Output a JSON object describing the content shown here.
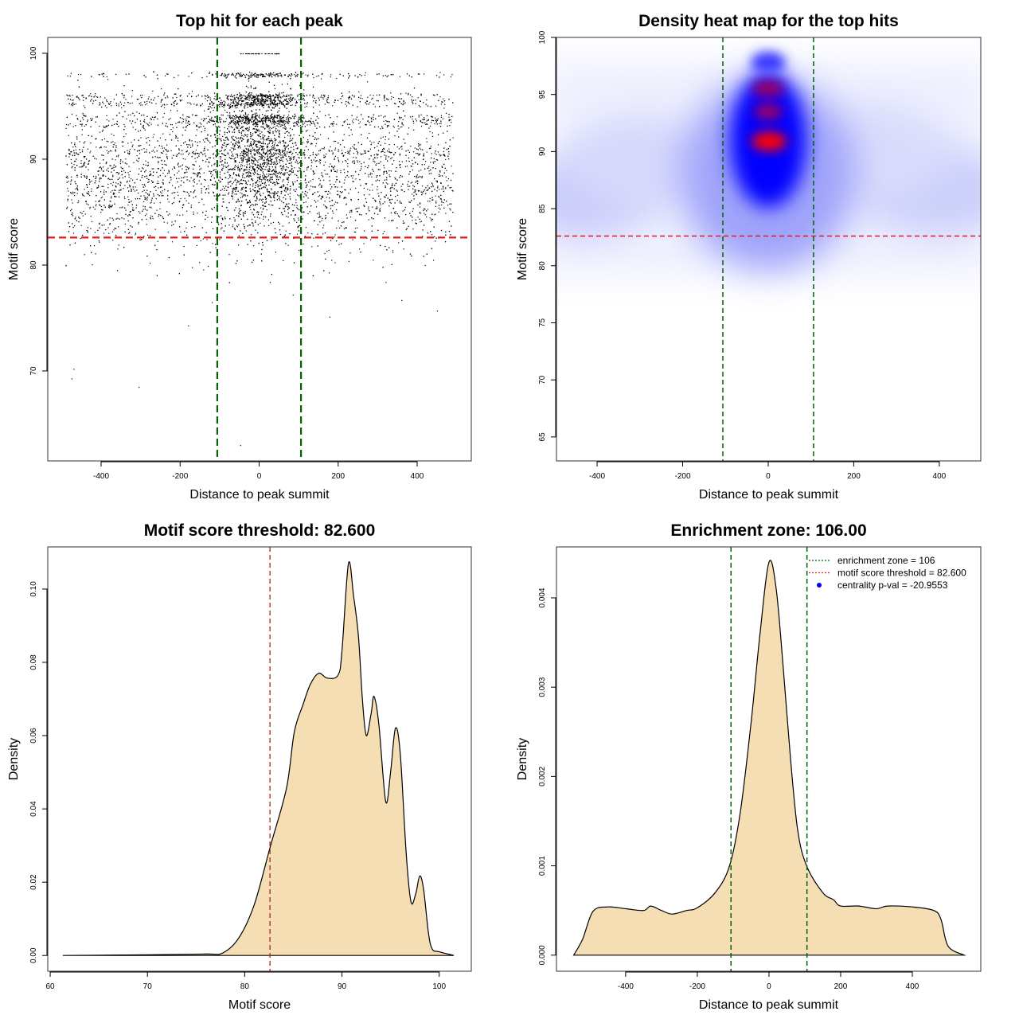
{
  "chart_data": [
    {
      "type": "scatter",
      "title": "Top hit for each peak",
      "xlabel": "Distance to peak summit",
      "ylabel": "Motif score",
      "xlim": [
        -535,
        537
      ],
      "ylim": [
        61.5,
        101.5
      ],
      "xticks": [
        -400,
        -200,
        0,
        200,
        400
      ],
      "yticks": [
        70,
        80,
        90,
        100
      ],
      "points_color": "#000000",
      "vlines": {
        "values": [
          -106,
          106
        ],
        "color": "#006400",
        "style": "dashed"
      },
      "hline": {
        "value": 82.6,
        "color": "#e41a1c",
        "style": "dashed"
      },
      "grid": false
    },
    {
      "type": "heatmap",
      "title": "Density heat map for the top hits",
      "xlabel": "Distance to peak summit",
      "ylabel": "Motif score",
      "xlim": [
        -495,
        497
      ],
      "ylim": [
        62.9,
        100
      ],
      "xticks": [
        -400,
        -200,
        0,
        200,
        400
      ],
      "yticks": [
        65,
        70,
        75,
        80,
        85,
        90,
        95,
        100
      ],
      "colors": {
        "low": "#ffffff",
        "mid": "#0000ff",
        "high": "#ff0000"
      },
      "vlines": {
        "values": [
          -106,
          106
        ],
        "color": "#006400",
        "style": "dashed"
      },
      "hline": {
        "value": 82.6,
        "color": "#e41a1c",
        "style": "dashed"
      },
      "grid": false
    },
    {
      "type": "area",
      "title": "Motif score threshold: 82.600",
      "xlabel": "Motif score",
      "ylabel": "Density",
      "xlim": [
        59.75,
        103.3
      ],
      "ylim": [
        -0.0043,
        0.1115
      ],
      "xticks": [
        60,
        70,
        80,
        90,
        100
      ],
      "yticks": [
        "0.00",
        "0.02",
        "0.04",
        "0.06",
        "0.08",
        "0.10"
      ],
      "fill": "#f5deb3",
      "x": [
        61.3,
        70,
        76,
        77.75,
        79.4,
        81,
        82.66,
        84.3,
        85.1,
        86.0,
        86.75,
        87.6,
        88.5,
        89.6,
        90.0,
        90.67,
        91.2,
        91.7,
        92.1,
        92.5,
        93.0,
        93.3,
        93.8,
        94.5,
        95.0,
        95.5,
        96.0,
        96.6,
        97.1,
        97.6,
        98.0,
        98.4,
        98.9,
        99.3,
        100,
        101.5
      ],
      "y": [
        0,
        0.0002,
        0.0004,
        0.0007,
        0.0048,
        0.014,
        0.03,
        0.0457,
        0.061,
        0.0685,
        0.074,
        0.077,
        0.0757,
        0.0765,
        0.083,
        0.107,
        0.098,
        0.087,
        0.07,
        0.06,
        0.066,
        0.0707,
        0.063,
        0.042,
        0.05,
        0.062,
        0.055,
        0.028,
        0.0146,
        0.017,
        0.0217,
        0.018,
        0.006,
        0.0017,
        0.001,
        0
      ],
      "vline": {
        "value": 82.6,
        "color": "#b22222",
        "style": "dashed"
      },
      "grid": false
    },
    {
      "type": "area",
      "title": "Enrichment zone: 106.00",
      "xlabel": "Distance to peak summit",
      "ylabel": "Density",
      "xlim": [
        -593,
        591
      ],
      "ylim": [
        -0.00018,
        0.00457
      ],
      "xticks": [
        -400,
        -200,
        0,
        200,
        400
      ],
      "yticks": [
        "0.000",
        "0.001",
        "0.002",
        "0.003",
        "0.004"
      ],
      "fill": "#f5deb3",
      "x": [
        -545,
        -520,
        -491,
        -450,
        -400,
        -350,
        -330,
        -300,
        -270,
        -230,
        -200,
        -150,
        -110,
        -80,
        -50,
        -25,
        0,
        20,
        40,
        60,
        80,
        105,
        150,
        180,
        200,
        250,
        300,
        330,
        400,
        460,
        480,
        500,
        545
      ],
      "y": [
        0,
        0.00018,
        0.00049,
        0.00054,
        0.00052,
        0.0005,
        0.00055,
        0.0005,
        0.00046,
        0.0005,
        0.00053,
        0.0007,
        0.001,
        0.0016,
        0.0026,
        0.0036,
        0.0044,
        0.0041,
        0.0032,
        0.0022,
        0.0014,
        0.001,
        0.0007,
        0.00062,
        0.00055,
        0.00055,
        0.00052,
        0.00055,
        0.00054,
        0.0005,
        0.0004,
        0.0001,
        0
      ],
      "vlines": {
        "values": [
          -106,
          106
        ],
        "color": "#006400",
        "style": "dashed"
      },
      "legend": {
        "position": "top-right",
        "entries": [
          {
            "label": "enrichment zone = 106",
            "color": "#006400",
            "symbol": "dotted-line"
          },
          {
            "label": "motif score threshold = 82.600",
            "color": "#e41a1c",
            "symbol": "dotted-line"
          },
          {
            "label": "centrality p-val = -20.9553",
            "color": "#0000ff",
            "symbol": "dot"
          }
        ]
      },
      "grid": false
    }
  ]
}
